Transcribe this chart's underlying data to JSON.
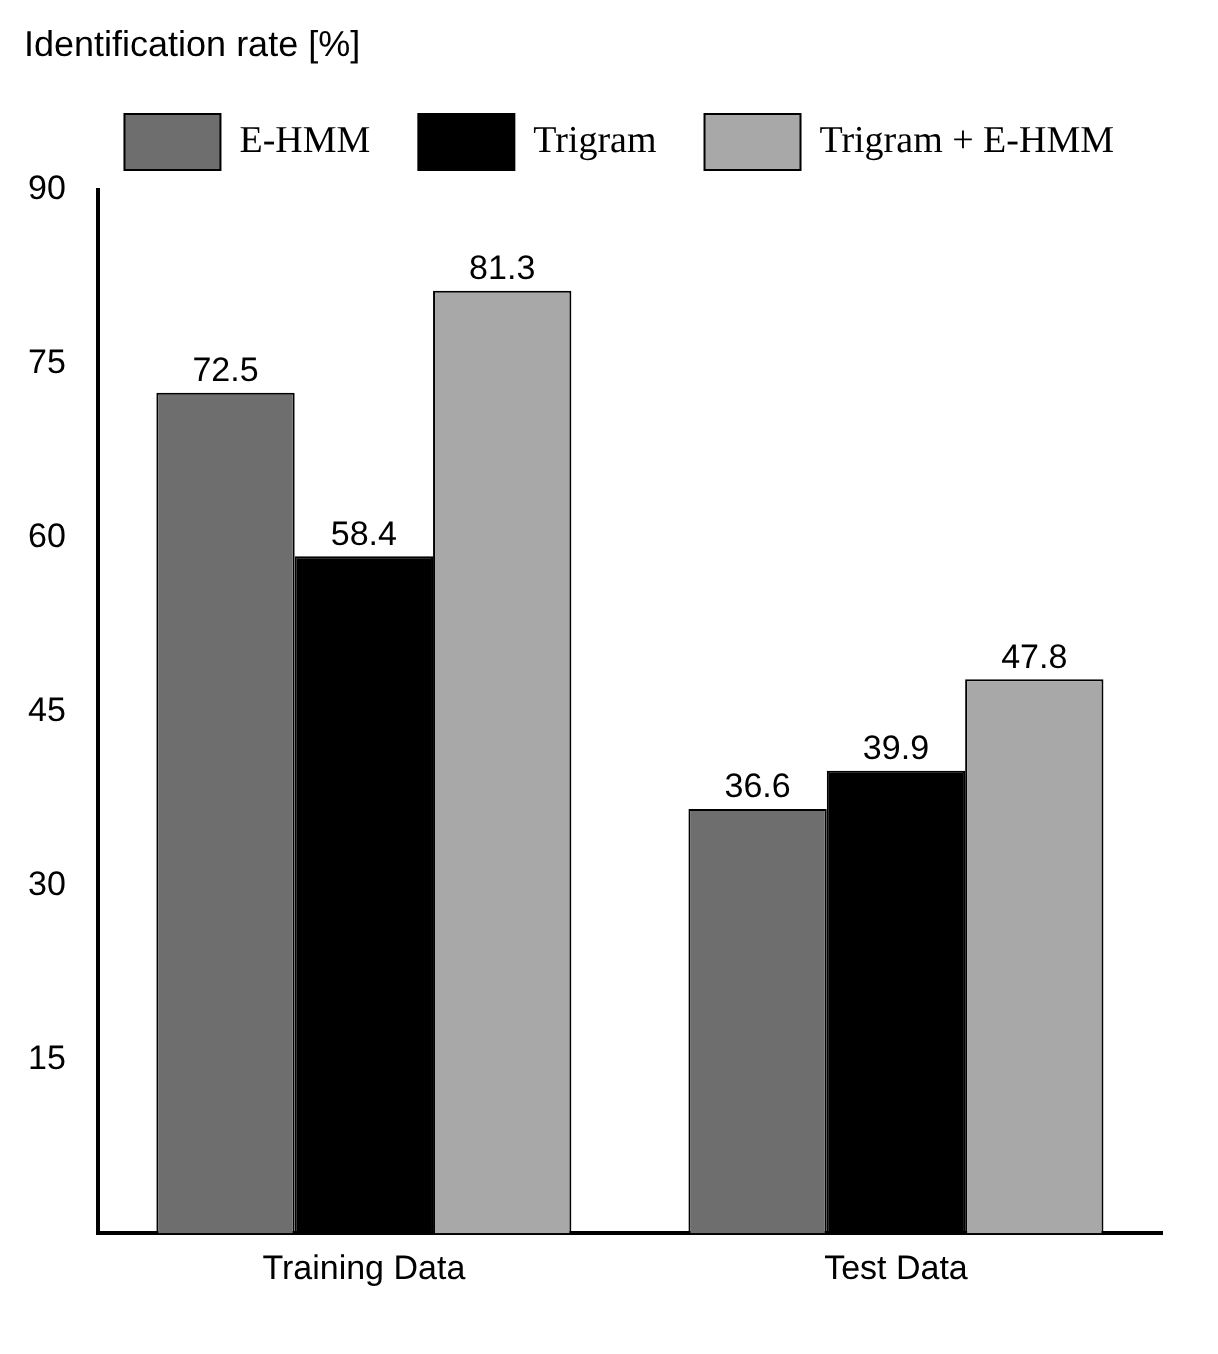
{
  "chart_data": {
    "type": "bar",
    "ylabel": "Identification rate [%]",
    "categories": [
      "Training Data",
      "Test Data"
    ],
    "series": [
      {
        "name": "E-HMM",
        "color": "#6e6e6e",
        "values": [
          72.5,
          36.6
        ]
      },
      {
        "name": "Trigram",
        "color": "#000000",
        "values": [
          58.4,
          39.9
        ]
      },
      {
        "name": "Trigram + E-HMM",
        "color": "#a8a8a8",
        "values": [
          81.3,
          47.8
        ]
      }
    ],
    "ylim": [
      0,
      90
    ],
    "yticks": [
      15,
      30,
      45,
      60,
      75,
      90
    ],
    "grid": false,
    "legend": "top",
    "data_labels": true
  }
}
